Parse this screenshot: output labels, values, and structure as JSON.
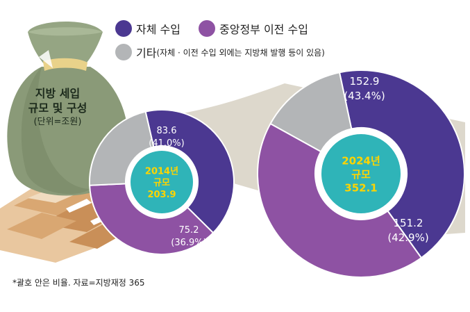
{
  "legend": {
    "items": [
      {
        "label": "자체 수입",
        "color": "#4b3891"
      },
      {
        "label": "중앙정부 이전 수입",
        "color": "#8e52a3"
      },
      {
        "label": "기타",
        "note": "(자체 · 이전 수입 외에는 지방채 발행 등이 있음)",
        "color": "#b3b5b7"
      }
    ]
  },
  "title": {
    "line1": "지방 세입",
    "line2": "규모 및 구성",
    "unit": "(단위=조원)"
  },
  "footnote": "*괄호 안은 비율. 자료=지방재정 365",
  "chart_data": [
    {
      "type": "pie",
      "center": {
        "line1": "2014년",
        "line2": "규모",
        "line3": "203.9"
      },
      "total": 203.9,
      "slices": [
        {
          "category": "자체 수입",
          "value": 83.6,
          "percent": 41.0,
          "value_label": "83.6",
          "percent_label": "(41.0%)",
          "color": "#4b3891"
        },
        {
          "category": "중앙정부 이전 수입",
          "value": 75.2,
          "percent": 36.9,
          "value_label": "75.2",
          "percent_label": "(36.9%)",
          "color": "#8e52a3"
        },
        {
          "category": "기타",
          "value": 45.1,
          "percent": 22.1,
          "color": "#b3b5b7"
        }
      ]
    },
    {
      "type": "pie",
      "center": {
        "line1": "2024년",
        "line2": "규모",
        "line3": "352.1"
      },
      "total": 352.1,
      "slices": [
        {
          "category": "자체 수입",
          "value": 152.9,
          "percent": 43.4,
          "value_label": "152.9",
          "percent_label": "(43.4%)",
          "color": "#4b3891"
        },
        {
          "category": "중앙정부 이전 수입",
          "value": 151.2,
          "percent": 42.9,
          "value_label": "151.2",
          "percent_label": "(42.9%)",
          "color": "#8e52a3"
        },
        {
          "category": "기타",
          "value": 48.0,
          "percent": 13.7,
          "color": "#b3b5b7"
        }
      ]
    }
  ],
  "colors": {
    "center": "#2fb4b8",
    "center_text": "#ffd400",
    "connector": "#ddd8cc"
  }
}
